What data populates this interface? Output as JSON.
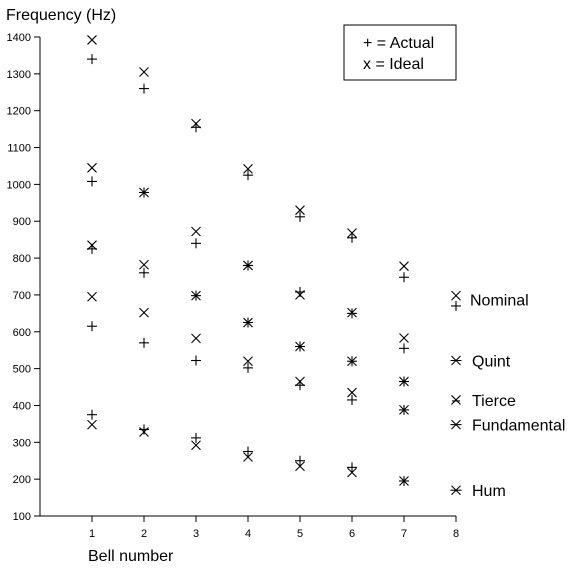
{
  "chart_data": {
    "type": "scatter",
    "ylabel": "Frequency (Hz)",
    "xlabel": "Bell number",
    "xlim": [
      0,
      8
    ],
    "ylim": [
      100,
      1400
    ],
    "x_ticks": [
      1,
      2,
      3,
      4,
      5,
      6,
      7,
      8
    ],
    "y_ticks": [
      100,
      200,
      300,
      400,
      500,
      600,
      700,
      800,
      900,
      1000,
      1100,
      1200,
      1300,
      1400
    ],
    "grid": false,
    "legend": {
      "placement": "top-right",
      "entries": [
        {
          "symbol": "plus",
          "text": "+ = Actual"
        },
        {
          "symbol": "x",
          "text": "x = Ideal"
        }
      ]
    },
    "series": [
      {
        "marker": "x",
        "x": [
          1,
          2,
          3,
          4,
          5,
          6,
          7
        ],
        "y": [
          1392,
          1305,
          1165,
          1042,
          930,
          868,
          778
        ]
      },
      {
        "marker": "plus",
        "x": [
          1,
          2,
          3,
          4,
          5,
          6,
          7
        ],
        "y": [
          1340,
          1260,
          1155,
          1025,
          912,
          855,
          748
        ]
      },
      {
        "marker": "x",
        "x": [
          1,
          2,
          3,
          4,
          5,
          6,
          7
        ],
        "y": [
          1045,
          978,
          872,
          780,
          700,
          652,
          583
        ]
      },
      {
        "marker": "plus",
        "x": [
          1,
          2,
          3,
          4,
          5,
          6,
          7
        ],
        "y": [
          1008,
          978,
          840,
          780,
          708,
          650,
          555
        ]
      },
      {
        "marker": "x",
        "x": [
          1,
          2,
          3,
          4,
          5,
          6,
          7
        ],
        "y": [
          835,
          782,
          698,
          625,
          560,
          520,
          465
        ]
      },
      {
        "marker": "plus",
        "x": [
          1,
          2,
          3,
          4,
          5,
          6,
          7
        ],
        "y": [
          825,
          760,
          698,
          625,
          560,
          520,
          465
        ]
      },
      {
        "marker": "x",
        "x": [
          1,
          2,
          3,
          4,
          5,
          6,
          7
        ],
        "y": [
          695,
          652,
          582,
          520,
          465,
          435,
          388
        ]
      },
      {
        "marker": "plus",
        "x": [
          1,
          2,
          3,
          4,
          5,
          6,
          7
        ],
        "y": [
          615,
          570,
          522,
          502,
          455,
          415,
          388
        ]
      },
      {
        "marker": "x",
        "x": [
          1,
          2,
          3,
          4,
          5,
          6,
          7
        ],
        "y": [
          348,
          328,
          292,
          260,
          235,
          218,
          195
        ]
      },
      {
        "marker": "plus",
        "x": [
          1,
          2,
          3,
          4,
          5,
          6,
          7
        ],
        "y": [
          375,
          335,
          312,
          275,
          250,
          232,
          195
        ]
      }
    ],
    "annotations": [
      {
        "text": "Nominal",
        "symbol": "x-plus",
        "y": 698,
        "y2": 670
      },
      {
        "text": "Quint",
        "symbol": "star",
        "y": 522
      },
      {
        "text": "Tierce",
        "symbol": "x-plus-diag",
        "y": 415
      },
      {
        "text": "Fundamental",
        "symbol": "star",
        "y": 348
      },
      {
        "text": "Hum",
        "symbol": "star",
        "y": 170
      }
    ]
  }
}
